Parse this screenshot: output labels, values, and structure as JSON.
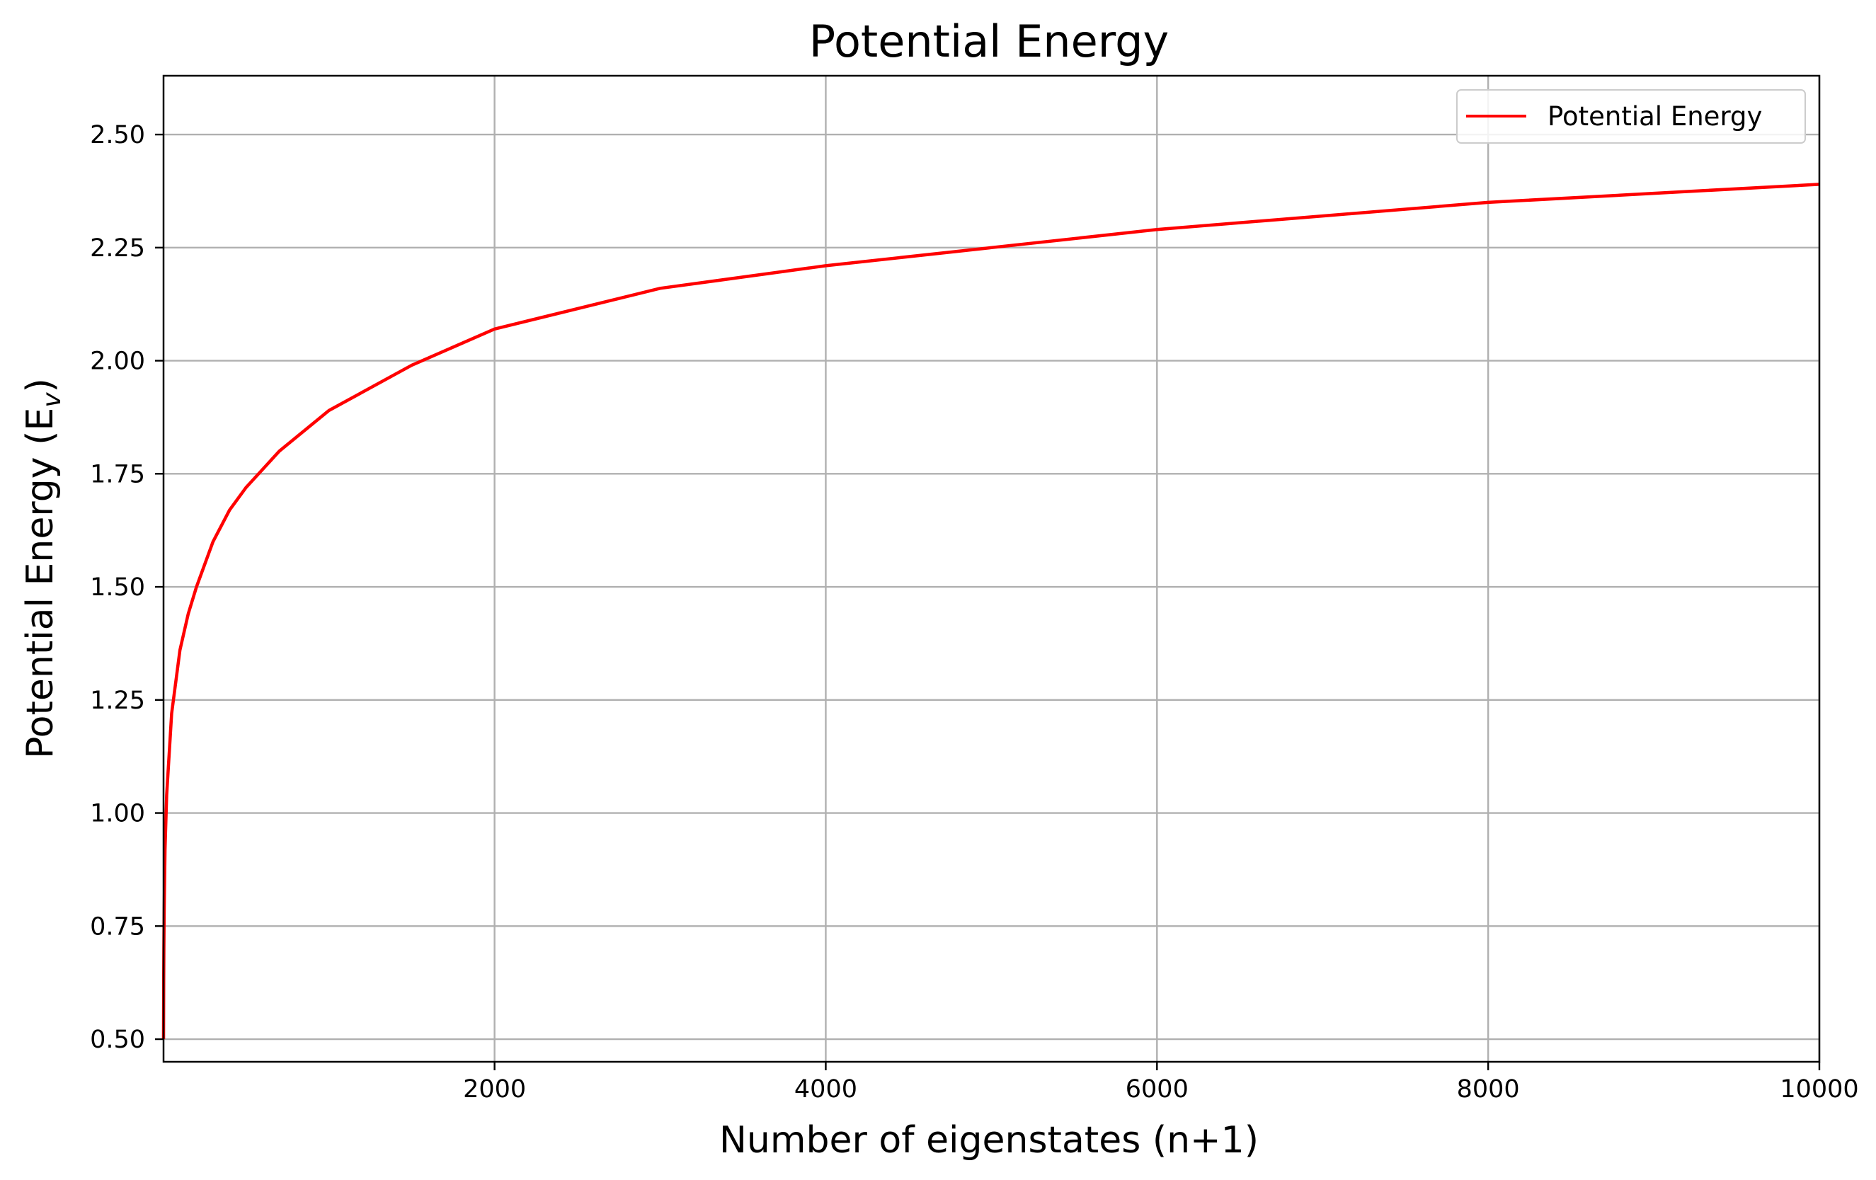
{
  "chart_data": {
    "type": "line",
    "title": "Potential Energy",
    "xlabel": "Number of eigenstates (n+1)",
    "ylabel_main": "Potential Energy (E",
    "ylabel_sub": "v",
    "ylabel_close": ")",
    "xlim": [
      1,
      10000
    ],
    "ylim": [
      0.45,
      2.63
    ],
    "xticks": [
      2000,
      4000,
      6000,
      8000,
      10000
    ],
    "xtick_labels": [
      "2000",
      "4000",
      "6000",
      "8000",
      "10000"
    ],
    "yticks": [
      0.5,
      0.75,
      1.0,
      1.25,
      1.5,
      1.75,
      2.0,
      2.25,
      2.5
    ],
    "ytick_labels": [
      "0.50",
      "0.75",
      "1.00",
      "1.25",
      "1.50",
      "1.75",
      "2.00",
      "2.25",
      "2.50"
    ],
    "grid": true,
    "legend_position": "top-right",
    "series": [
      {
        "name": "Potential Energy",
        "color": "#ff0000",
        "x": [
          1,
          2,
          3,
          5,
          10,
          20,
          50,
          100,
          150,
          200,
          300,
          400,
          500,
          700,
          1000,
          1500,
          2000,
          3000,
          4000,
          5000,
          6000,
          7000,
          8000,
          9000,
          10000
        ],
        "y": [
          0.5,
          0.63,
          0.7,
          0.79,
          0.92,
          1.04,
          1.22,
          1.36,
          1.44,
          1.5,
          1.6,
          1.67,
          1.72,
          1.8,
          1.89,
          1.99,
          2.07,
          2.16,
          2.21,
          2.25,
          2.29,
          2.32,
          2.35,
          2.37,
          2.39
        ]
      }
    ]
  }
}
